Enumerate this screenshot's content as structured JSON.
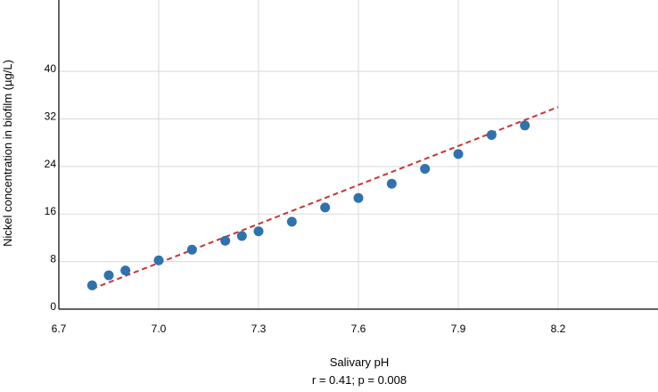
{
  "chart_data": {
    "type": "scatter",
    "title": "",
    "xlabel": "Salivary pH",
    "ylabel": "Nickel concentration in biofilm (µg/L)",
    "annotation": "r = 0.41; p = 0.008",
    "xlim": [
      6.7,
      8.5
    ],
    "ylim": [
      0,
      52
    ],
    "x_ticks": [
      6.7,
      7.0,
      7.3,
      7.6,
      7.9,
      8.2
    ],
    "x_tick_labels": [
      "6.7",
      "7.0",
      "7.3",
      "7.6",
      "7.9",
      "8.2"
    ],
    "y_ticks": [
      0,
      8,
      16,
      24,
      32,
      40
    ],
    "y_tick_labels": [
      "0",
      "8",
      "16",
      "24",
      "32",
      "40"
    ],
    "grid": true,
    "series": [
      {
        "type": "scatter",
        "color": "#2f72ad",
        "points": [
          {
            "x": 6.8,
            "y": 4.0
          },
          {
            "x": 6.85,
            "y": 5.7
          },
          {
            "x": 6.9,
            "y": 6.5
          },
          {
            "x": 7.0,
            "y": 8.2
          },
          {
            "x": 7.1,
            "y": 10.0
          },
          {
            "x": 7.2,
            "y": 11.5
          },
          {
            "x": 7.25,
            "y": 12.3
          },
          {
            "x": 7.3,
            "y": 13.1
          },
          {
            "x": 7.4,
            "y": 14.7
          },
          {
            "x": 7.5,
            "y": 17.1
          },
          {
            "x": 7.6,
            "y": 18.7
          },
          {
            "x": 7.7,
            "y": 21.1
          },
          {
            "x": 7.8,
            "y": 23.6
          },
          {
            "x": 7.9,
            "y": 26.1
          },
          {
            "x": 8.0,
            "y": 29.3
          },
          {
            "x": 8.1,
            "y": 30.9
          }
        ]
      },
      {
        "type": "line",
        "style": "dashed",
        "color": "#cc3333",
        "points": [
          {
            "x": 6.8,
            "y": 3.4
          },
          {
            "x": 8.2,
            "y": 34.0
          }
        ]
      }
    ]
  }
}
